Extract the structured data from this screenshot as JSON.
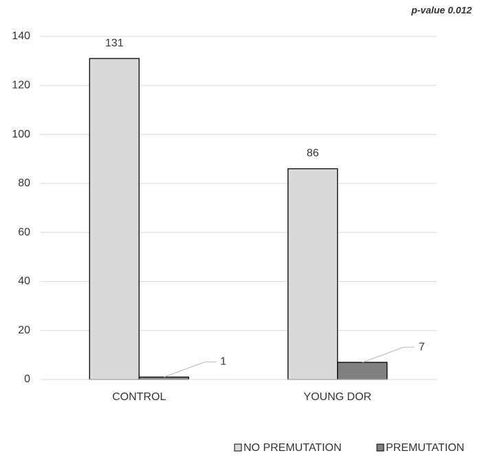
{
  "chart_data": {
    "type": "bar",
    "annotation": "p-value 0.012",
    "categories": [
      "CONTROL",
      "YOUNG DOR"
    ],
    "series": [
      {
        "name": "NO PREMUTATION",
        "color": "#d9d9d9",
        "values": [
          131,
          86
        ]
      },
      {
        "name": "PREMUTATION",
        "color": "#808080",
        "values": [
          1,
          7
        ]
      }
    ],
    "ylim": [
      0,
      140
    ],
    "yticks": [
      0,
      20,
      40,
      60,
      80,
      100,
      120,
      140
    ],
    "grid": true,
    "legend": "bottom"
  }
}
